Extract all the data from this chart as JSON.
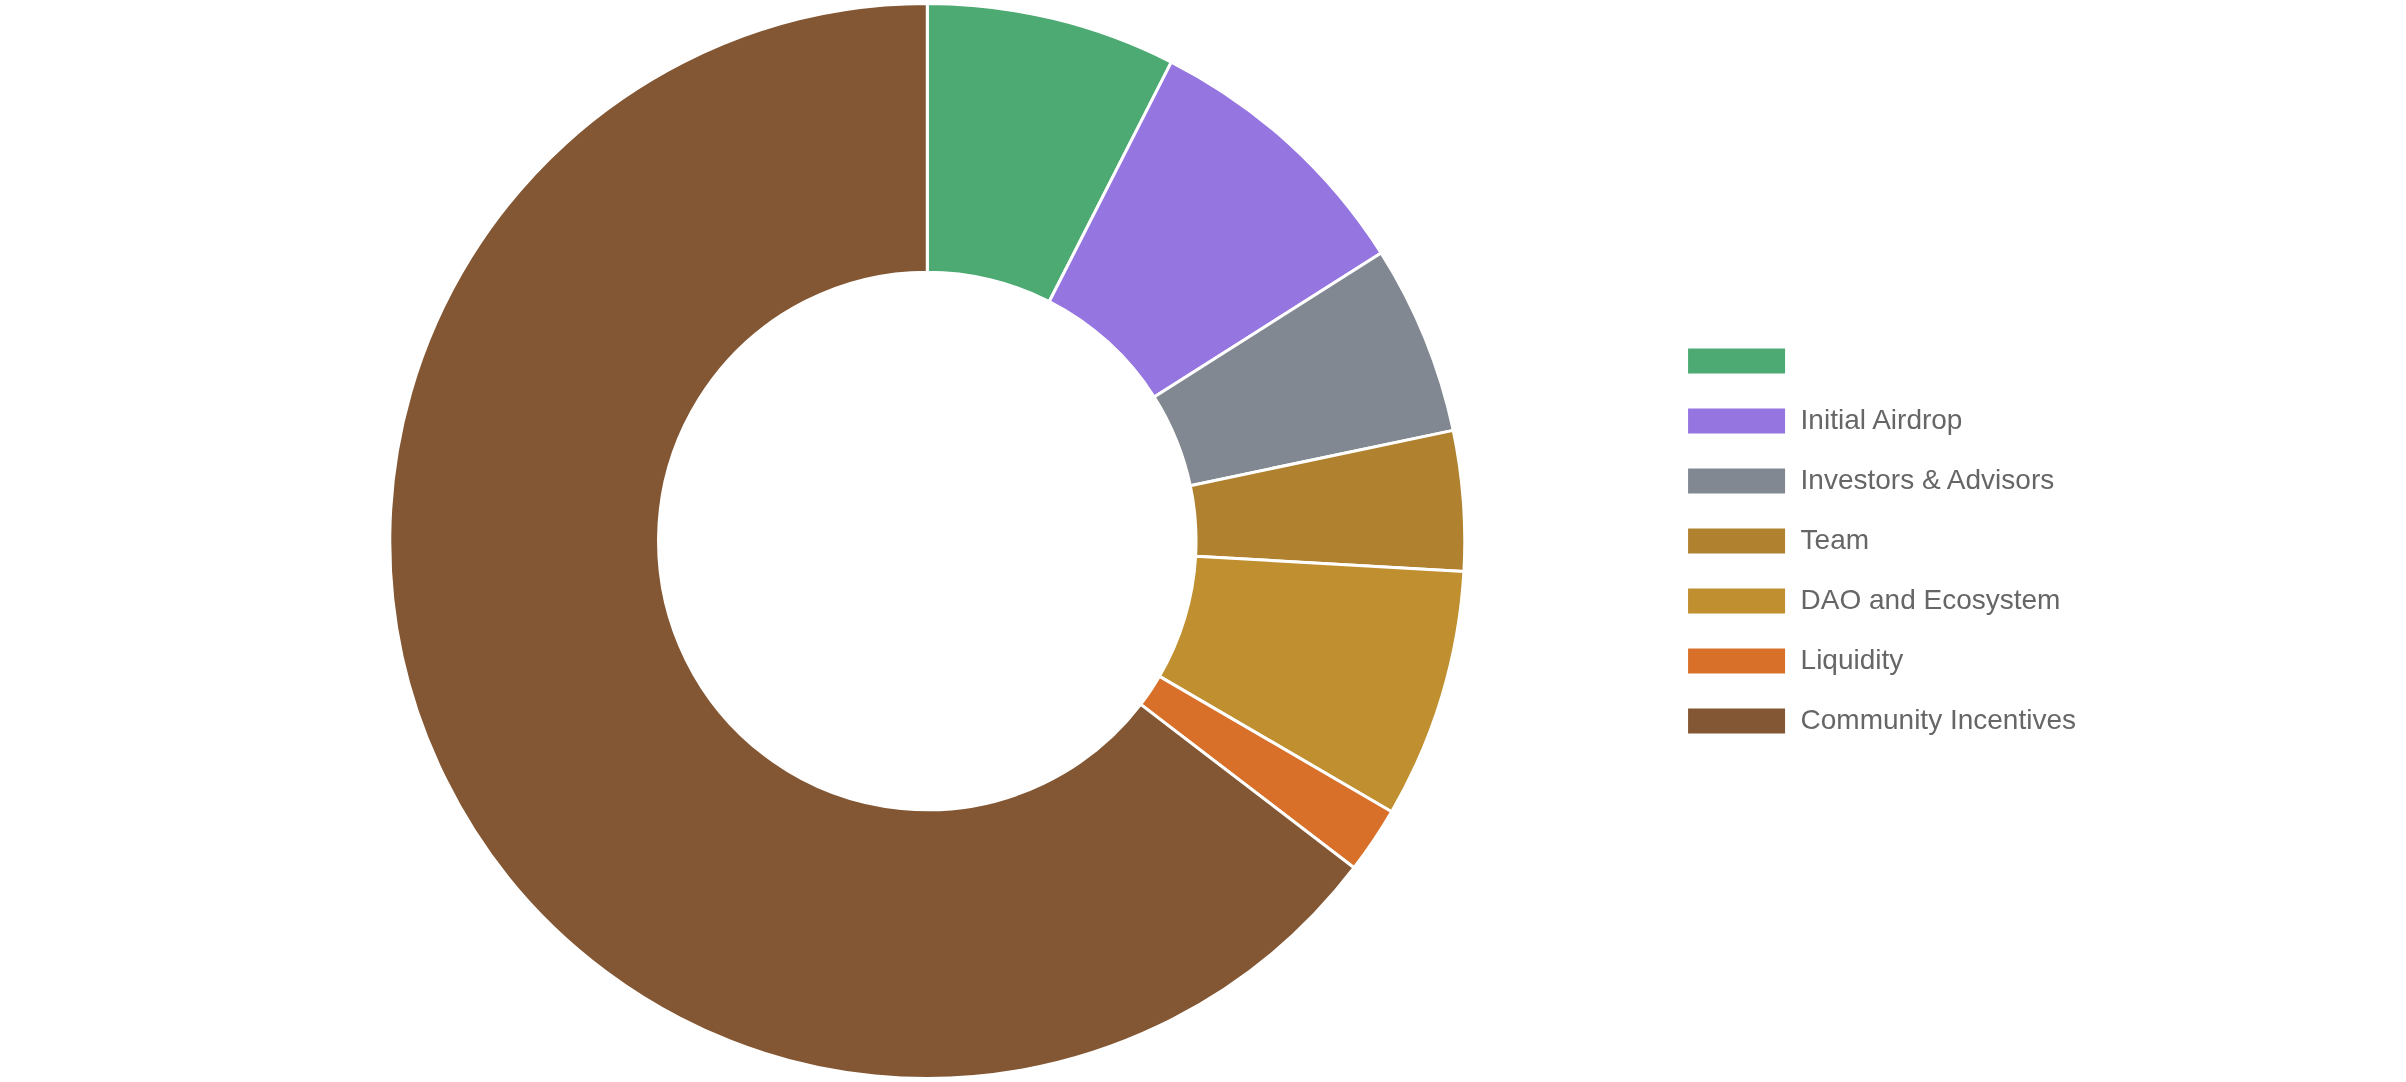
{
  "chart_data": {
    "type": "donut",
    "categories": [
      null,
      "Initial Airdrop",
      "Investors & Advisors",
      "Team",
      "DAO and Ecosystem",
      "Liquidity",
      "Community Incentives"
    ],
    "values": [
      7.5,
      8.5,
      5.7,
      4.2,
      7.5,
      2,
      64.6
    ],
    "colors": [
      "#4caa72",
      "#9575e0",
      "#828891",
      "#b0822f",
      "#bf8f30",
      "#d9702a",
      "#835733"
    ],
    "legend": "right"
  }
}
